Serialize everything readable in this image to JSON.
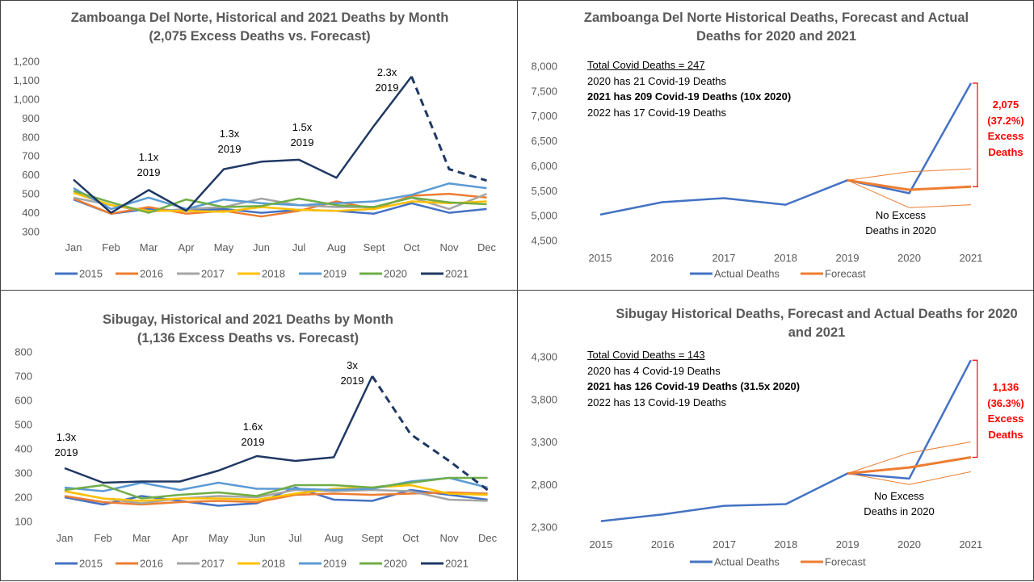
{
  "colors": {
    "y2015": "#4472c4",
    "y2016": "#ed7d31",
    "y2017": "#a5a5a5",
    "y2018": "#ffc000",
    "y2019": "#5b9bd5",
    "y2020": "#70ad47",
    "y2021": "#203864",
    "actual": "#4472c4",
    "forecast": "#ed7d31",
    "excess": "#ff0000",
    "grid": "#d9d9d9",
    "text": "#595959"
  },
  "panels": {
    "p1": {
      "title_line1": "Zamboanga  Del Norte, Historical and 2021 Deaths by Month",
      "title_line2": "(2,075 Excess Deaths vs. Forecast)"
    },
    "p2": {
      "title_line1": "Zamboanga  Del Norte Historical Deaths, Forecast and Actual",
      "title_line2": "Deaths for 2020 and 2021",
      "info": [
        "Total Covid Deaths = 247",
        "2020 has 21 Covid-19 Deaths",
        "2021 has 209 Covid-19 Deaths (10x 2020)",
        "2022 has 17 Covid-19 Deaths"
      ],
      "excess": [
        "2,075",
        "(37.2%)",
        "Excess",
        "Deaths"
      ]
    },
    "p3": {
      "title_line1": "Sibugay, Historical and 2021 Deaths by Month",
      "title_line2": "(1,136 Excess Deaths vs. Forecast)"
    },
    "p4": {
      "title_line1": "Sibugay Historical Deaths, Forecast and Actual Deaths for 2020",
      "title_line2": "and 2021",
      "info": [
        "Total Covid Deaths = 143",
        "2020 has 4 Covid-19 Deaths",
        "2021 has 126 Covid-19 Deaths (31.5x 2020)",
        "2022 has 13 Covid-19 Deaths"
      ],
      "excess": [
        "1,136",
        "(36.3%)",
        "Excess",
        "Deaths"
      ]
    }
  },
  "chart_data": [
    {
      "type": "line",
      "title": "Zamboanga  Del Norte, Historical and 2021 Deaths by Month (2,075 Excess Deaths vs. Forecast)",
      "categories": [
        "Jan",
        "Feb",
        "Mar",
        "Apr",
        "May",
        "Jun",
        "Jul",
        "Aug",
        "Sept",
        "Oct",
        "Nov",
        "Dec"
      ],
      "ylim": [
        300,
        1200
      ],
      "yticks": [
        "300",
        "400",
        "500",
        "600",
        "700",
        "800",
        "900",
        "1,000",
        "1,100",
        "1,200"
      ],
      "grid": false,
      "legend": "bottom",
      "series": [
        {
          "name": "2015",
          "color": "#4472c4",
          "values": [
            470,
            395,
            420,
            410,
            420,
            400,
            415,
            410,
            395,
            450,
            400,
            420
          ]
        },
        {
          "name": "2016",
          "color": "#ed7d31",
          "values": [
            475,
            395,
            430,
            395,
            410,
            380,
            410,
            460,
            420,
            490,
            500,
            480
          ]
        },
        {
          "name": "2017",
          "color": "#a5a5a5",
          "values": [
            480,
            440,
            405,
            420,
            430,
            475,
            440,
            430,
            430,
            480,
            420,
            500
          ]
        },
        {
          "name": "2018",
          "color": "#ffc000",
          "values": [
            505,
            440,
            410,
            410,
            405,
            430,
            415,
            410,
            420,
            460,
            450,
            460
          ]
        },
        {
          "name": "2019",
          "color": "#5b9bd5",
          "values": [
            530,
            420,
            480,
            420,
            470,
            450,
            440,
            450,
            460,
            495,
            555,
            530
          ]
        },
        {
          "name": "2020",
          "color": "#70ad47",
          "values": [
            515,
            455,
            400,
            470,
            430,
            435,
            475,
            440,
            430,
            480,
            455,
            445
          ]
        },
        {
          "name": "2021",
          "color": "#203864",
          "values": [
            575,
            400,
            520,
            410,
            630,
            670,
            680,
            585,
            860,
            1120,
            630,
            570
          ],
          "dashed_from_index": 9
        }
      ],
      "annotations": [
        {
          "text": [
            "1.1x",
            "2019"
          ],
          "x": "Mar",
          "y": 640
        },
        {
          "text": [
            "1.3x",
            "2019"
          ],
          "x": "May",
          "y": 760
        },
        {
          "text": [
            "1.5x",
            "2019"
          ],
          "x": "Jul",
          "y": 760
        },
        {
          "text": [
            "2.3x",
            "2019"
          ],
          "x": "Sept",
          "y": 1160
        }
      ]
    },
    {
      "type": "line",
      "title": "Zamboanga  Del Norte Historical Deaths, Forecast and Actual Deaths for 2020 and 2021",
      "categories": [
        "2015",
        "2016",
        "2017",
        "2018",
        "2019",
        "2020",
        "2021"
      ],
      "ylim": [
        4500,
        8000
      ],
      "yticks": [
        "4,500",
        "5,000",
        "5,500",
        "6,000",
        "6,500",
        "7,000",
        "7,500",
        "8,000"
      ],
      "grid": false,
      "legend": "bottom",
      "series": [
        {
          "name": "Actual Deaths",
          "color": "#4472c4",
          "values": [
            5020,
            5270,
            5350,
            5220,
            5710,
            5450,
            7660
          ]
        },
        {
          "name": "Forecast",
          "color": "#ed7d31",
          "values": [
            null,
            null,
            null,
            null,
            5710,
            5520,
            5580
          ]
        },
        {
          "name": "",
          "color": "#ed7d31",
          "values": [
            null,
            null,
            null,
            null,
            5710,
            5880,
            5940
          ]
        },
        {
          "name": "",
          "color": "#ed7d31",
          "values": [
            null,
            null,
            null,
            null,
            5710,
            5160,
            5220
          ]
        }
      ],
      "annotations": [
        {
          "text": [
            "No Excess",
            "Deaths in 2020"
          ],
          "x": "2019",
          "y": 4990
        }
      ]
    },
    {
      "type": "line",
      "title": "Sibugay, Historical and 2021 Deaths by Month (1,136 Excess Deaths vs. Forecast)",
      "categories": [
        "Jan",
        "Feb",
        "Mar",
        "Apr",
        "May",
        "Jun",
        "Jul",
        "Aug",
        "Sept",
        "Oct",
        "Nov",
        "Dec"
      ],
      "ylim": [
        100,
        800
      ],
      "yticks": [
        "100",
        "200",
        "300",
        "400",
        "500",
        "600",
        "700",
        "800"
      ],
      "grid": false,
      "legend": "bottom",
      "series": [
        {
          "name": "2015",
          "color": "#4472c4",
          "values": [
            200,
            170,
            205,
            185,
            165,
            175,
            240,
            190,
            185,
            230,
            210,
            190
          ]
        },
        {
          "name": "2016",
          "color": "#ed7d31",
          "values": [
            205,
            180,
            170,
            180,
            185,
            180,
            210,
            215,
            210,
            215,
            220,
            215
          ]
        },
        {
          "name": "2017",
          "color": "#a5a5a5",
          "values": [
            225,
            195,
            175,
            195,
            205,
            200,
            230,
            225,
            230,
            225,
            190,
            185
          ]
        },
        {
          "name": "2018",
          "color": "#ffc000",
          "values": [
            225,
            195,
            185,
            195,
            195,
            190,
            215,
            235,
            240,
            250,
            215,
            210
          ]
        },
        {
          "name": "2019",
          "color": "#5b9bd5",
          "values": [
            240,
            225,
            260,
            230,
            260,
            235,
            235,
            230,
            235,
            265,
            280,
            240
          ]
        },
        {
          "name": "2020",
          "color": "#70ad47",
          "values": [
            230,
            250,
            195,
            210,
            220,
            205,
            250,
            250,
            240,
            260,
            280,
            280
          ]
        },
        {
          "name": "2021",
          "color": "#203864",
          "values": [
            320,
            260,
            265,
            265,
            310,
            370,
            350,
            365,
            700,
            460,
            350,
            230
          ],
          "dashed_from_index": 8
        }
      ],
      "annotations": [
        {
          "text": [
            "1.3x",
            "2019"
          ],
          "x": "Jan",
          "y": 415
        },
        {
          "text": [
            "1.6x",
            "2019"
          ],
          "x": "Jun",
          "y": 480
        },
        {
          "text": [
            "3x",
            "2019"
          ],
          "x": "Sept",
          "y": 780
        }
      ]
    },
    {
      "type": "line",
      "title": "Sibugay Historical Deaths, Forecast and Actual Deaths for 2020 and 2021",
      "categories": [
        "2015",
        "2016",
        "2017",
        "2018",
        "2019",
        "2020",
        "2021"
      ],
      "ylim": [
        2300,
        4300
      ],
      "yticks": [
        "2,300",
        "2,800",
        "3,300",
        "3,800",
        "4,300"
      ],
      "grid": false,
      "legend": "bottom",
      "series": [
        {
          "name": "Actual Deaths",
          "color": "#4472c4",
          "values": [
            2370,
            2450,
            2550,
            2570,
            2930,
            2870,
            4260
          ]
        },
        {
          "name": "Forecast",
          "color": "#ed7d31",
          "values": [
            null,
            null,
            null,
            null,
            2930,
            3000,
            3120
          ]
        },
        {
          "name": "",
          "color": "#ed7d31",
          "values": [
            null,
            null,
            null,
            null,
            2930,
            3170,
            3300
          ]
        },
        {
          "name": "",
          "color": "#ed7d31",
          "values": [
            null,
            null,
            null,
            null,
            2930,
            2800,
            2950
          ]
        }
      ],
      "annotations": [
        {
          "text": [
            "No Excess",
            "Deaths in 2020"
          ],
          "x": "2019",
          "y": 2740
        }
      ]
    }
  ]
}
